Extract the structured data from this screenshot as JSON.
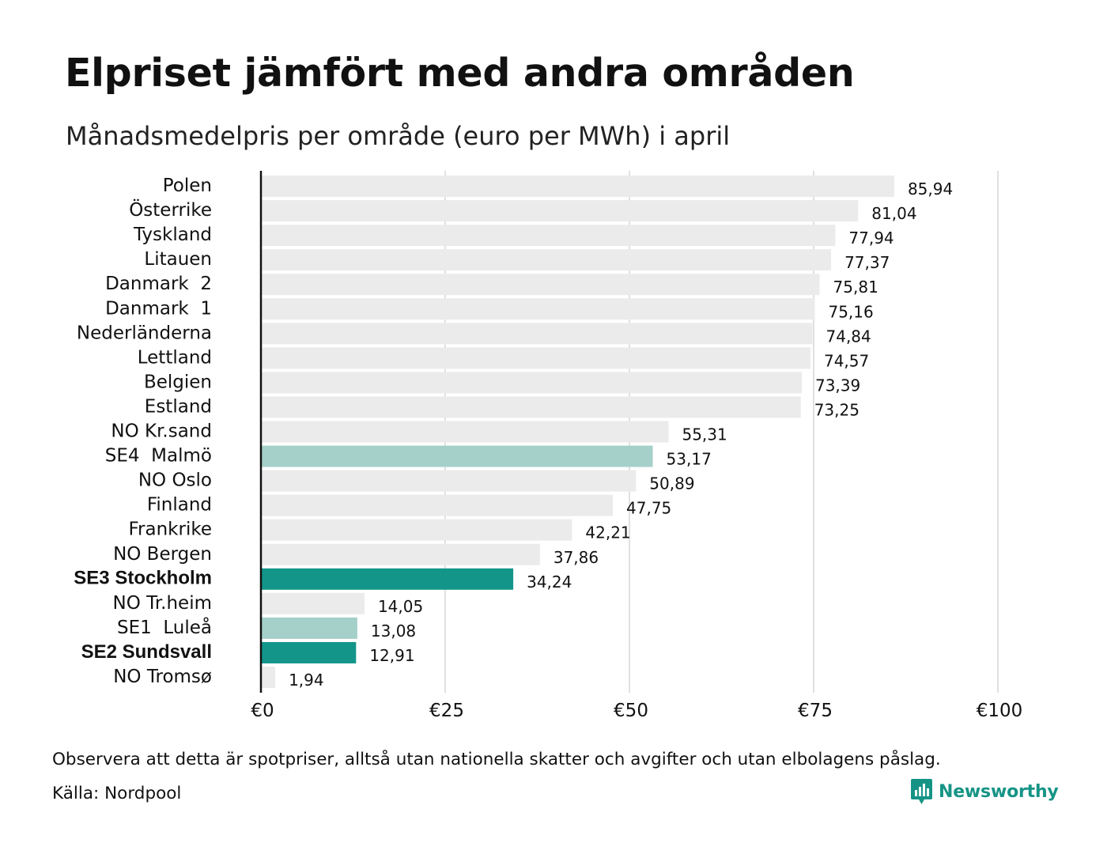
{
  "title": "Elpriset jämfört med andra områden",
  "subtitle": "Månadsmedelpris per område (euro per MWh) i april",
  "footnote": "Observera att detta är spotpriser, alltså utan nationella skatter och avgifter och utan elbolagens påslag.",
  "source": "Källa: Nordpool",
  "brand": {
    "name": "Newsworthy",
    "icon": "newsworthy-logo-icon",
    "color": "#159486"
  },
  "colors": {
    "default_bar": "#ebebeb",
    "highlight_dark": "#13958a",
    "highlight_light": "#a5d0c9",
    "axis_line": "#111111",
    "grid": "#cccccc"
  },
  "chart_data": {
    "type": "bar",
    "orientation": "horizontal",
    "categories": [
      "Polen",
      "Österrike",
      "Tyskland",
      "Litauen",
      "Danmark  2",
      "Danmark  1",
      "Nederländerna",
      "Lettland",
      "Belgien",
      "Estland",
      "NO Kr.sand",
      "SE4  Malmö",
      "NO Oslo",
      "Finland",
      "Frankrike",
      "NO Bergen",
      "SE3 Stockholm",
      "NO Tr.heim",
      "SE1  Luleå",
      "SE2 Sundsvall",
      "NO Tromsø"
    ],
    "values": [
      85.94,
      81.04,
      77.94,
      77.37,
      75.81,
      75.16,
      74.84,
      74.57,
      73.39,
      73.25,
      55.31,
      53.17,
      50.89,
      47.75,
      42.21,
      37.86,
      34.24,
      14.05,
      13.08,
      12.91,
      1.94
    ],
    "value_labels": [
      "85,94",
      "81,04",
      "77,94",
      "77,37",
      "75,81",
      "75,16",
      "74,84",
      "74,57",
      "73,39",
      "73,25",
      "55,31",
      "53,17",
      "50,89",
      "47,75",
      "42,21",
      "37,86",
      "34,24",
      "14,05",
      "13,08",
      "12,91",
      "1,94"
    ],
    "highlight": [
      "none",
      "none",
      "none",
      "none",
      "none",
      "none",
      "none",
      "none",
      "none",
      "none",
      "none",
      "light",
      "none",
      "none",
      "none",
      "none",
      "dark",
      "none",
      "light",
      "dark",
      "none"
    ],
    "bold_labels": [
      "SE3 Stockholm",
      "SE2 Sundsvall"
    ],
    "xlim": [
      0,
      100
    ],
    "xticks": [
      0,
      25,
      50,
      75,
      100
    ],
    "xtick_labels": [
      "€0",
      "€25",
      "€50",
      "€75",
      "€100"
    ],
    "xlabel": "",
    "ylabel": "",
    "grid": true,
    "legend": "none"
  }
}
